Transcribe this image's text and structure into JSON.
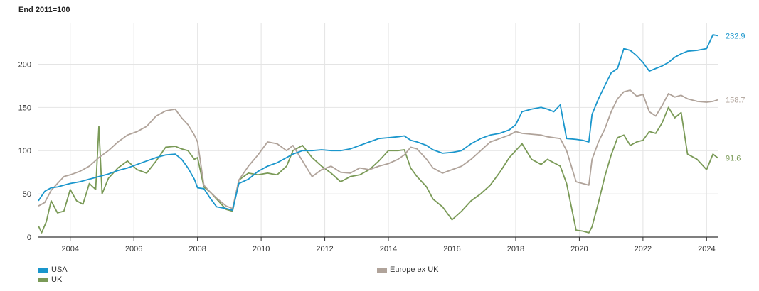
{
  "chart_data": {
    "type": "line",
    "title": "End 2011=100",
    "xlabel": "",
    "ylabel": "",
    "xlim": [
      2003.0,
      2024.35
    ],
    "ylim": [
      0,
      248
    ],
    "y_ticks": [
      0,
      50,
      100,
      150,
      200
    ],
    "x_ticks": [
      2004,
      2006,
      2008,
      2010,
      2012,
      2014,
      2016,
      2018,
      2020,
      2022,
      2024
    ],
    "grid": true,
    "legend_placement": "bottom",
    "series": [
      {
        "name": "USA",
        "color": "#1a96cc",
        "end_label": "232.9",
        "points": [
          [
            2003.0,
            42
          ],
          [
            2003.2,
            53
          ],
          [
            2003.4,
            57
          ],
          [
            2003.6,
            58
          ],
          [
            2003.8,
            60
          ],
          [
            2004.0,
            62
          ],
          [
            2004.3,
            64
          ],
          [
            2004.6,
            67
          ],
          [
            2004.9,
            70
          ],
          [
            2005.2,
            73
          ],
          [
            2005.5,
            77
          ],
          [
            2005.8,
            80
          ],
          [
            2006.1,
            84
          ],
          [
            2006.4,
            88
          ],
          [
            2006.7,
            92
          ],
          [
            2007.0,
            95
          ],
          [
            2007.3,
            96
          ],
          [
            2007.5,
            90
          ],
          [
            2007.7,
            80
          ],
          [
            2007.9,
            67
          ],
          [
            2008.0,
            57
          ],
          [
            2008.2,
            56
          ],
          [
            2008.4,
            45
          ],
          [
            2008.6,
            35
          ],
          [
            2008.9,
            33
          ],
          [
            2009.1,
            31
          ],
          [
            2009.3,
            62
          ],
          [
            2009.6,
            67
          ],
          [
            2009.9,
            76
          ],
          [
            2010.2,
            82
          ],
          [
            2010.5,
            86
          ],
          [
            2010.8,
            92
          ],
          [
            2011.0,
            96
          ],
          [
            2011.3,
            100
          ],
          [
            2011.6,
            100
          ],
          [
            2011.9,
            101
          ],
          [
            2012.2,
            100
          ],
          [
            2012.5,
            100
          ],
          [
            2012.8,
            102
          ],
          [
            2013.1,
            106
          ],
          [
            2013.4,
            110
          ],
          [
            2013.7,
            114
          ],
          [
            2014.0,
            115
          ],
          [
            2014.3,
            116
          ],
          [
            2014.5,
            117
          ],
          [
            2014.7,
            112
          ],
          [
            2014.9,
            110
          ],
          [
            2015.2,
            106
          ],
          [
            2015.4,
            101
          ],
          [
            2015.7,
            97
          ],
          [
            2016.0,
            98
          ],
          [
            2016.3,
            100
          ],
          [
            2016.6,
            108
          ],
          [
            2016.9,
            114
          ],
          [
            2017.2,
            118
          ],
          [
            2017.5,
            120
          ],
          [
            2017.8,
            124
          ],
          [
            2018.0,
            130
          ],
          [
            2018.2,
            145
          ],
          [
            2018.5,
            148
          ],
          [
            2018.8,
            150
          ],
          [
            2019.0,
            148
          ],
          [
            2019.2,
            145
          ],
          [
            2019.4,
            153
          ],
          [
            2019.6,
            114
          ],
          [
            2019.9,
            113
          ],
          [
            2020.1,
            112
          ],
          [
            2020.3,
            110
          ],
          [
            2020.4,
            142
          ],
          [
            2020.6,
            160
          ],
          [
            2020.8,
            175
          ],
          [
            2021.0,
            190
          ],
          [
            2021.2,
            195
          ],
          [
            2021.4,
            218
          ],
          [
            2021.6,
            216
          ],
          [
            2021.8,
            210
          ],
          [
            2022.0,
            202
          ],
          [
            2022.2,
            192
          ],
          [
            2022.4,
            195
          ],
          [
            2022.6,
            198
          ],
          [
            2022.8,
            202
          ],
          [
            2023.0,
            208
          ],
          [
            2023.2,
            212
          ],
          [
            2023.4,
            215
          ],
          [
            2023.7,
            216
          ],
          [
            2024.0,
            218
          ],
          [
            2024.2,
            234
          ],
          [
            2024.35,
            232.9
          ]
        ]
      },
      {
        "name": "Europe ex UK",
        "color": "#b0a39a",
        "end_label": "158.7",
        "points": [
          [
            2003.0,
            36
          ],
          [
            2003.2,
            40
          ],
          [
            2003.4,
            54
          ],
          [
            2003.6,
            62
          ],
          [
            2003.8,
            70
          ],
          [
            2004.0,
            72
          ],
          [
            2004.3,
            76
          ],
          [
            2004.6,
            82
          ],
          [
            2004.9,
            92
          ],
          [
            2005.2,
            100
          ],
          [
            2005.5,
            110
          ],
          [
            2005.8,
            118
          ],
          [
            2006.1,
            122
          ],
          [
            2006.4,
            128
          ],
          [
            2006.7,
            140
          ],
          [
            2007.0,
            146
          ],
          [
            2007.3,
            148
          ],
          [
            2007.5,
            138
          ],
          [
            2007.7,
            130
          ],
          [
            2007.9,
            118
          ],
          [
            2008.0,
            110
          ],
          [
            2008.2,
            60
          ],
          [
            2008.4,
            52
          ],
          [
            2008.6,
            45
          ],
          [
            2008.9,
            36
          ],
          [
            2009.1,
            33
          ],
          [
            2009.3,
            66
          ],
          [
            2009.6,
            82
          ],
          [
            2009.9,
            95
          ],
          [
            2010.2,
            110
          ],
          [
            2010.5,
            108
          ],
          [
            2010.8,
            100
          ],
          [
            2011.0,
            106
          ],
          [
            2011.3,
            88
          ],
          [
            2011.6,
            70
          ],
          [
            2011.9,
            78
          ],
          [
            2012.2,
            82
          ],
          [
            2012.5,
            75
          ],
          [
            2012.8,
            74
          ],
          [
            2013.1,
            80
          ],
          [
            2013.4,
            78
          ],
          [
            2013.7,
            82
          ],
          [
            2014.0,
            85
          ],
          [
            2014.3,
            90
          ],
          [
            2014.5,
            95
          ],
          [
            2014.7,
            104
          ],
          [
            2014.9,
            102
          ],
          [
            2015.2,
            90
          ],
          [
            2015.4,
            80
          ],
          [
            2015.7,
            74
          ],
          [
            2016.0,
            78
          ],
          [
            2016.3,
            82
          ],
          [
            2016.6,
            90
          ],
          [
            2016.9,
            100
          ],
          [
            2017.2,
            110
          ],
          [
            2017.5,
            114
          ],
          [
            2017.8,
            118
          ],
          [
            2018.0,
            122
          ],
          [
            2018.2,
            120
          ],
          [
            2018.5,
            119
          ],
          [
            2018.8,
            118
          ],
          [
            2019.0,
            116
          ],
          [
            2019.2,
            115
          ],
          [
            2019.4,
            114
          ],
          [
            2019.6,
            100
          ],
          [
            2019.9,
            64
          ],
          [
            2020.1,
            62
          ],
          [
            2020.3,
            60
          ],
          [
            2020.4,
            90
          ],
          [
            2020.6,
            110
          ],
          [
            2020.8,
            125
          ],
          [
            2021.0,
            145
          ],
          [
            2021.2,
            160
          ],
          [
            2021.4,
            168
          ],
          [
            2021.6,
            170
          ],
          [
            2021.8,
            163
          ],
          [
            2022.0,
            165
          ],
          [
            2022.2,
            145
          ],
          [
            2022.4,
            140
          ],
          [
            2022.6,
            152
          ],
          [
            2022.8,
            166
          ],
          [
            2023.0,
            162
          ],
          [
            2023.2,
            164
          ],
          [
            2023.4,
            160
          ],
          [
            2023.7,
            157
          ],
          [
            2024.0,
            156
          ],
          [
            2024.2,
            157
          ],
          [
            2024.35,
            158.7
          ]
        ]
      },
      {
        "name": "UK",
        "color": "#7a9a57",
        "end_label": "91.6",
        "points": [
          [
            2003.0,
            13
          ],
          [
            2003.1,
            5
          ],
          [
            2003.25,
            18
          ],
          [
            2003.4,
            42
          ],
          [
            2003.6,
            28
          ],
          [
            2003.8,
            30
          ],
          [
            2004.0,
            55
          ],
          [
            2004.2,
            42
          ],
          [
            2004.4,
            38
          ],
          [
            2004.6,
            62
          ],
          [
            2004.8,
            55
          ],
          [
            2004.9,
            128
          ],
          [
            2005.0,
            50
          ],
          [
            2005.2,
            68
          ],
          [
            2005.5,
            80
          ],
          [
            2005.8,
            88
          ],
          [
            2006.1,
            78
          ],
          [
            2006.4,
            74
          ],
          [
            2006.7,
            88
          ],
          [
            2007.0,
            104
          ],
          [
            2007.3,
            105
          ],
          [
            2007.5,
            102
          ],
          [
            2007.7,
            100
          ],
          [
            2007.9,
            90
          ],
          [
            2008.0,
            92
          ],
          [
            2008.2,
            58
          ],
          [
            2008.4,
            52
          ],
          [
            2008.6,
            44
          ],
          [
            2008.9,
            32
          ],
          [
            2009.1,
            30
          ],
          [
            2009.3,
            66
          ],
          [
            2009.6,
            74
          ],
          [
            2009.9,
            72
          ],
          [
            2010.2,
            74
          ],
          [
            2010.5,
            72
          ],
          [
            2010.8,
            82
          ],
          [
            2011.0,
            100
          ],
          [
            2011.3,
            106
          ],
          [
            2011.6,
            92
          ],
          [
            2011.9,
            82
          ],
          [
            2012.2,
            74
          ],
          [
            2012.5,
            64
          ],
          [
            2012.8,
            70
          ],
          [
            2013.1,
            72
          ],
          [
            2013.4,
            78
          ],
          [
            2013.7,
            88
          ],
          [
            2014.0,
            100
          ],
          [
            2014.3,
            100
          ],
          [
            2014.5,
            101
          ],
          [
            2014.7,
            80
          ],
          [
            2014.9,
            70
          ],
          [
            2015.2,
            58
          ],
          [
            2015.4,
            44
          ],
          [
            2015.7,
            35
          ],
          [
            2016.0,
            20
          ],
          [
            2016.3,
            30
          ],
          [
            2016.6,
            42
          ],
          [
            2016.9,
            50
          ],
          [
            2017.2,
            60
          ],
          [
            2017.5,
            75
          ],
          [
            2017.8,
            92
          ],
          [
            2018.0,
            100
          ],
          [
            2018.2,
            108
          ],
          [
            2018.5,
            90
          ],
          [
            2018.8,
            84
          ],
          [
            2019.0,
            90
          ],
          [
            2019.2,
            86
          ],
          [
            2019.4,
            82
          ],
          [
            2019.6,
            62
          ],
          [
            2019.9,
            8
          ],
          [
            2020.1,
            7
          ],
          [
            2020.3,
            5
          ],
          [
            2020.4,
            12
          ],
          [
            2020.6,
            40
          ],
          [
            2020.8,
            70
          ],
          [
            2021.0,
            95
          ],
          [
            2021.2,
            115
          ],
          [
            2021.4,
            118
          ],
          [
            2021.6,
            106
          ],
          [
            2021.8,
            110
          ],
          [
            2022.0,
            112
          ],
          [
            2022.2,
            122
          ],
          [
            2022.4,
            120
          ],
          [
            2022.6,
            132
          ],
          [
            2022.8,
            150
          ],
          [
            2023.0,
            138
          ],
          [
            2023.2,
            144
          ],
          [
            2023.4,
            96
          ],
          [
            2023.7,
            90
          ],
          [
            2024.0,
            78
          ],
          [
            2024.2,
            96
          ],
          [
            2024.35,
            91.6
          ]
        ]
      }
    ]
  }
}
